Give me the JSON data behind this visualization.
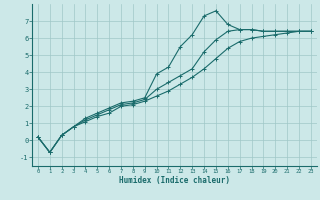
{
  "title": "",
  "xlabel": "Humidex (Indice chaleur)",
  "bg_color": "#cce8e8",
  "grid_color": "#a0c8c8",
  "line_color": "#1a6b6b",
  "xlim": [
    -0.5,
    23.5
  ],
  "ylim": [
    -1.5,
    8.0
  ],
  "xticks": [
    0,
    1,
    2,
    3,
    4,
    5,
    6,
    7,
    8,
    9,
    10,
    11,
    12,
    13,
    14,
    15,
    16,
    17,
    18,
    19,
    20,
    21,
    22,
    23
  ],
  "yticks": [
    -1,
    0,
    1,
    2,
    3,
    4,
    5,
    6,
    7
  ],
  "line1_x": [
    0,
    1,
    2,
    3,
    4,
    5,
    6,
    7,
    8,
    9,
    10,
    11,
    12,
    13,
    14,
    15,
    16,
    17,
    18,
    19,
    20,
    21,
    22,
    23
  ],
  "line1_y": [
    0.2,
    -0.7,
    0.3,
    0.8,
    1.3,
    1.6,
    1.9,
    2.2,
    2.3,
    2.5,
    3.9,
    4.3,
    5.5,
    6.2,
    7.3,
    7.6,
    6.8,
    6.5,
    6.5,
    6.4,
    6.4,
    6.4,
    6.4,
    6.4
  ],
  "line2_x": [
    0,
    1,
    2,
    3,
    4,
    5,
    6,
    7,
    8,
    9,
    10,
    11,
    12,
    13,
    14,
    15,
    16,
    17,
    18,
    19,
    20,
    21,
    22,
    23
  ],
  "line2_y": [
    0.2,
    -0.7,
    0.3,
    0.8,
    1.2,
    1.5,
    1.8,
    2.1,
    2.2,
    2.4,
    3.0,
    3.4,
    3.8,
    4.2,
    5.2,
    5.9,
    6.4,
    6.5,
    6.5,
    6.4,
    6.4,
    6.4,
    6.4,
    6.4
  ],
  "line3_x": [
    0,
    1,
    2,
    3,
    4,
    5,
    6,
    7,
    8,
    9,
    10,
    11,
    12,
    13,
    14,
    15,
    16,
    17,
    18,
    19,
    20,
    21,
    22,
    23
  ],
  "line3_y": [
    0.2,
    -0.7,
    0.3,
    0.8,
    1.1,
    1.4,
    1.6,
    2.0,
    2.1,
    2.3,
    2.6,
    2.9,
    3.3,
    3.7,
    4.2,
    4.8,
    5.4,
    5.8,
    6.0,
    6.1,
    6.2,
    6.3,
    6.4,
    6.4
  ]
}
